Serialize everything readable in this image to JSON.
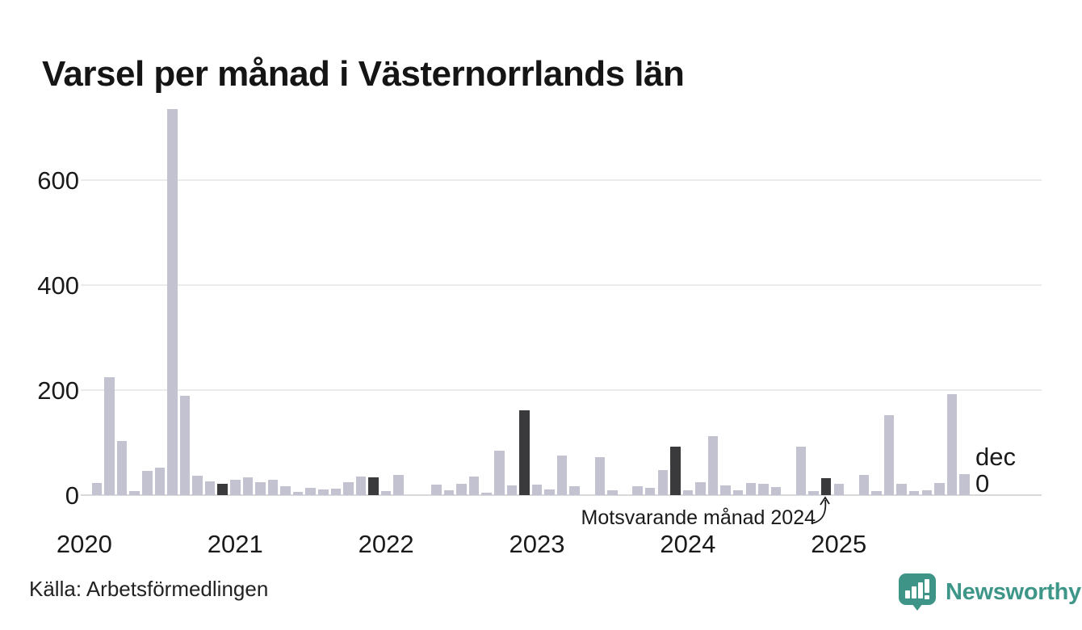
{
  "title": "Varsel per månad i Västernorrlands län",
  "source": "Källa: Arbetsförmedlingen",
  "annotation": {
    "text": "Motsvarande månad 2024"
  },
  "latest_label": {
    "month": "dec",
    "value": "0"
  },
  "branding": {
    "logo_text": "Newsworthy",
    "logo_icon": "newsworthy-speech-bubble-bar-chart",
    "logo_color": "#3d9688"
  },
  "colors": {
    "bar": "#c3c2d0",
    "highlight_bar": "#3a3a3c",
    "grid": "#ebebee",
    "zero_line": "#d9d9dc",
    "text": "#1a1a1a"
  },
  "chart_data": {
    "type": "bar",
    "title": "Varsel per månad i Västernorrlands län",
    "xlabel": "",
    "ylabel": "",
    "x_unit": "månad",
    "x_tick_labels": [
      "2020",
      "2021",
      "2022",
      "2023",
      "2024",
      "2025"
    ],
    "yticks": [
      0,
      200,
      400,
      600
    ],
    "ylim": [
      0,
      750
    ],
    "grid": "horizontal",
    "legend_position": "none",
    "series": [
      {
        "year": 2020,
        "values": [
          0,
          23,
          225,
          103,
          8,
          46,
          52,
          735,
          190,
          37,
          26,
          22
        ]
      },
      {
        "year": 2021,
        "values": [
          29,
          34,
          24,
          30,
          17,
          6,
          14,
          11,
          12,
          25,
          35,
          34
        ]
      },
      {
        "year": 2022,
        "values": [
          7,
          38,
          0,
          0,
          20,
          10,
          21,
          36,
          5,
          85,
          18,
          162
        ]
      },
      {
        "year": 2023,
        "values": [
          20,
          11,
          75,
          17,
          0,
          72,
          9,
          0,
          17,
          14,
          48,
          92
        ]
      },
      {
        "year": 2024,
        "values": [
          9,
          24,
          112,
          18,
          10,
          23,
          21,
          16,
          0,
          92,
          7,
          33
        ]
      },
      {
        "year": 2025,
        "values": [
          22,
          0,
          38,
          8,
          152,
          21,
          7,
          10,
          23,
          193,
          40,
          0
        ]
      }
    ],
    "highlighted_bars": [
      "dec 2020",
      "dec 2021",
      "dec 2022",
      "dec 2023",
      "dec 2024"
    ],
    "annotations": [
      {
        "text": "Motsvarande månad 2024",
        "points_to": "dec 2024"
      },
      {
        "text": "dec 0",
        "points_to": "dec 2025"
      }
    ]
  }
}
